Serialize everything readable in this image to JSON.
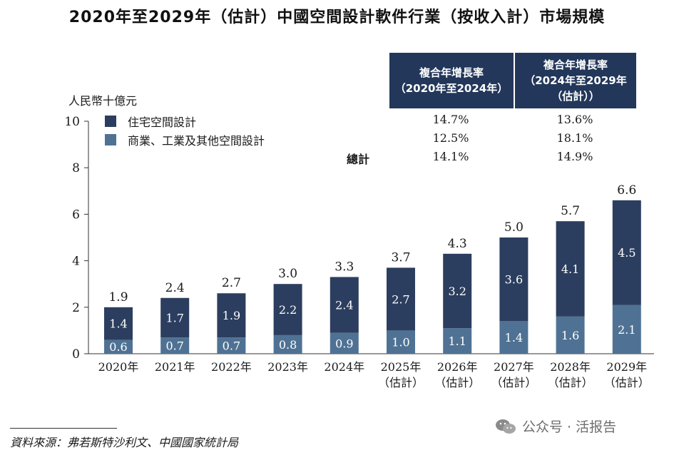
{
  "title": "2020年至2029年（估計）中國空間設計軟件行業（按收入計）市場規模",
  "unit": "人民幣十億元",
  "legend": [
    {
      "label": "住宅空間設計",
      "color": "#2c3e5f"
    },
    {
      "label": "商業、工業及其他空間設計",
      "color": "#4f7294"
    }
  ],
  "cagr": {
    "header1": [
      "複合年增長率",
      "（2020年至2024年）"
    ],
    "header2": [
      "複合年增長率",
      "（2024年至2029年",
      "（估計））"
    ],
    "rows": [
      {
        "label": "",
        "v1": "14.7%",
        "v2": "13.6%"
      },
      {
        "label": "",
        "v1": "12.5%",
        "v2": "18.1%"
      },
      {
        "label": "總計",
        "v1": "14.1%",
        "v2": "14.9%"
      }
    ]
  },
  "chart_data": {
    "type": "bar",
    "stacked": true,
    "categories": [
      [
        "2020年"
      ],
      [
        "2021年"
      ],
      [
        "2022年"
      ],
      [
        "2023年"
      ],
      [
        "2024年"
      ],
      [
        "2025年",
        "（估計）"
      ],
      [
        "2026年",
        "（估計）"
      ],
      [
        "2027年",
        "（估計）"
      ],
      [
        "2028年",
        "（估計）"
      ],
      [
        "2029年",
        "（估計）"
      ]
    ],
    "series": [
      {
        "name": "商業、工業及其他空間設計",
        "values": [
          0.6,
          0.7,
          0.7,
          0.8,
          0.9,
          1.0,
          1.1,
          1.4,
          1.6,
          2.1
        ],
        "color": "#4f7294",
        "label_color": "#ffffff"
      },
      {
        "name": "住宅空間設計",
        "values": [
          1.4,
          1.7,
          1.9,
          2.2,
          2.4,
          2.7,
          3.2,
          3.6,
          4.1,
          4.5
        ],
        "color": "#2c3e5f",
        "label_color": "#ffffff"
      }
    ],
    "totals": [
      "1.9",
      "2.4",
      "2.7",
      "3.0",
      "3.3",
      "3.7",
      "4.3",
      "5.0",
      "5.7",
      "6.6"
    ],
    "ylim": [
      0,
      10
    ],
    "yticks": [
      0,
      2,
      4,
      6,
      8,
      10
    ],
    "ylabel": "人民幣十億元",
    "xlabel": ""
  },
  "source": "資料來源：弗若斯特沙利文、中國國家統計局",
  "watermark": "公众号 · 活报告"
}
